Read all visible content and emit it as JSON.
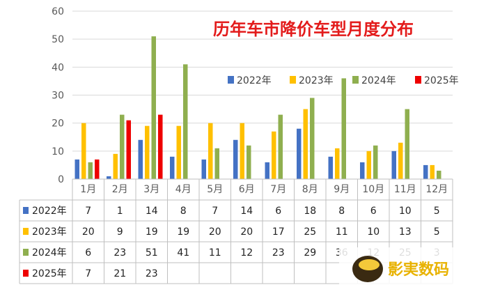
{
  "chart_data": {
    "type": "bar",
    "title": "历年车市降价车型月度分布",
    "categories": [
      "1月",
      "2月",
      "3月",
      "4月",
      "5月",
      "6月",
      "7月",
      "8月",
      "9月",
      "10月",
      "11月",
      "12月"
    ],
    "yticks": [
      "0",
      "10",
      "20",
      "30",
      "40",
      "50",
      "60"
    ],
    "ylim": [
      0,
      60
    ],
    "grid": true,
    "legend_position": "top-right",
    "series": [
      {
        "name": "2022年",
        "color": "#4472c4",
        "values": [
          7,
          1,
          14,
          8,
          7,
          14,
          6,
          18,
          8,
          6,
          10,
          5
        ],
        "labels": [
          "7",
          "1",
          "14",
          "8",
          "7",
          "14",
          "6",
          "18",
          "8",
          "6",
          "10",
          "5"
        ]
      },
      {
        "name": "2023年",
        "color": "#ffc000",
        "values": [
          20,
          9,
          19,
          19,
          20,
          20,
          17,
          25,
          11,
          10,
          13,
          5
        ],
        "labels": [
          "20",
          "9",
          "19",
          "19",
          "20",
          "20",
          "17",
          "25",
          "11",
          "10",
          "13",
          "5"
        ]
      },
      {
        "name": "2024年",
        "color": "#8faf4f",
        "values": [
          6,
          23,
          51,
          41,
          11,
          12,
          23,
          29,
          36,
          12,
          25,
          3
        ],
        "labels": [
          "6",
          "23",
          "51",
          "41",
          "11",
          "12",
          "23",
          "29",
          "36",
          "12",
          "25",
          "3"
        ]
      },
      {
        "name": "2025年",
        "color": "#ee0000",
        "values": [
          7,
          21,
          23,
          null,
          null,
          null,
          null,
          null,
          null,
          null,
          null,
          null
        ],
        "labels": [
          "7",
          "21",
          "23",
          "",
          "",
          "",
          "",
          "",
          "",
          "",
          "",
          ""
        ]
      }
    ]
  },
  "watermark": {
    "text": "影実数码"
  }
}
